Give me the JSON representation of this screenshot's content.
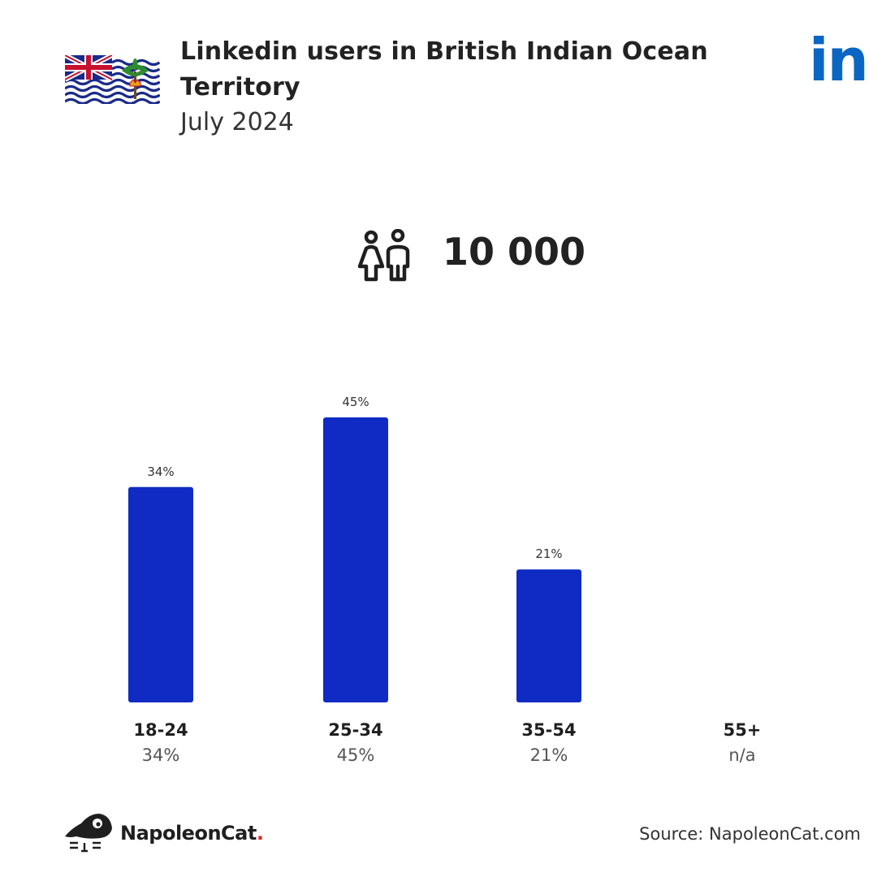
{
  "header": {
    "title": "Linkedin users in British Indian Ocean Territory",
    "subtitle": "July 2024",
    "flag_icon": "british-indian-ocean-territory-flag-icon",
    "platform_logo": "in",
    "platform_color": "#0a66c2"
  },
  "summary": {
    "users_icon": "users-icon",
    "total_users": "10 000"
  },
  "chart_data": {
    "type": "bar",
    "categories": [
      "18-24",
      "25-34",
      "35-54",
      "55+"
    ],
    "values": [
      34,
      45,
      21,
      null
    ],
    "value_labels": [
      "34%",
      "45%",
      "21%",
      ""
    ],
    "category_value_labels": [
      "34%",
      "45%",
      "21%",
      "n/a"
    ],
    "bar_color": "#0f2bc4",
    "ylim": [
      0,
      45
    ],
    "grid": false,
    "legend": "none"
  },
  "footer": {
    "brand_name": "NapoleonCat",
    "brand_dot": ".",
    "brand_dot_color": "#e8252b",
    "source": "Source: NapoleonCat.com"
  }
}
